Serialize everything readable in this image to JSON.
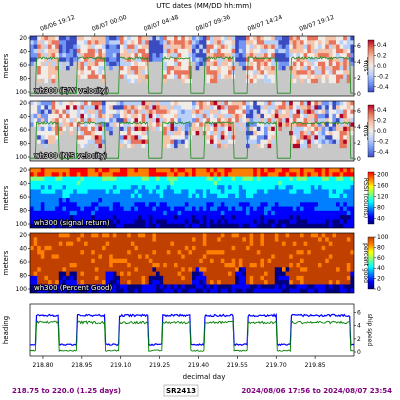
{
  "chart_data": {
    "type": "heatmap",
    "top_axis": {
      "title": "UTC dates (MM/DD hh:mm)",
      "ticks": [
        "08/06 19:12",
        "08/07 00:00",
        "08/07 04:48",
        "08/07 09:36",
        "08/07 14:24",
        "08/07 19:12"
      ],
      "tick_days": [
        218.8,
        219.0,
        219.2,
        219.4,
        219.6,
        219.8
      ]
    },
    "x": {
      "label": "decimal day",
      "range": [
        218.75,
        220.0
      ],
      "ticks": [
        "218.80",
        "218.95",
        "219.10",
        "219.25",
        "219.40",
        "219.55",
        "219.70",
        "219.85"
      ],
      "tick_values": [
        218.8,
        218.95,
        219.1,
        219.25,
        219.4,
        219.55,
        219.7,
        219.85
      ]
    },
    "depth_axis": {
      "label": "meters",
      "range": [
        20,
        100
      ],
      "ticks": [
        "20",
        "40",
        "60",
        "80",
        "100"
      ],
      "tick_values": [
        20,
        40,
        60,
        80,
        100
      ]
    },
    "panels": [
      {
        "id": "ew",
        "label": "wh300 (E/W velocity)",
        "colorbar_label": "m/s",
        "colorbar_ticks": [
          "0.4",
          "0.2",
          "0.0",
          "-0.2",
          "-0.4"
        ],
        "colorbar_values": [
          0.4,
          0.2,
          0.0,
          -0.2,
          -0.4
        ],
        "right_axis_label": "speed",
        "right_axis_ticks": [
          "6",
          "4",
          "2",
          "0"
        ],
        "colors": [
          "#3b4cc0",
          "#7396f5",
          "#b9d0f9",
          "#f1ece8",
          "#f4c3a9",
          "#e7745b",
          "#b40426"
        ]
      },
      {
        "id": "ns",
        "label": "wh300 (N/S velocity)",
        "colorbar_label": "m/s",
        "colorbar_ticks": [
          "0.4",
          "0.2",
          "0.0",
          "-0.2",
          "-0.4"
        ],
        "colorbar_values": [
          0.4,
          0.2,
          0.0,
          -0.2,
          -0.4
        ],
        "right_axis_label": "speed",
        "right_axis_ticks": [
          "6",
          "4",
          "2",
          "0"
        ],
        "colors": [
          "#3b4cc0",
          "#7396f5",
          "#b9d0f9",
          "#f1ece8",
          "#f4c3a9",
          "#e7745b",
          "#b40426"
        ]
      },
      {
        "id": "amp",
        "label": "wh300 (signal return)",
        "colorbar_label": "RSSI (counts)",
        "colorbar_ticks": [
          "200",
          "160",
          "120",
          "80",
          "40"
        ],
        "colorbar_values": [
          200,
          160,
          120,
          80,
          40
        ],
        "colors": [
          "#00007f",
          "#0000ff",
          "#007fff",
          "#00ffff",
          "#7fff7f",
          "#ffff00",
          "#ff7f00",
          "#ff0000"
        ]
      },
      {
        "id": "pg",
        "label": "wh300 (Percent Good)",
        "colorbar_label": "percent good",
        "colorbar_ticks": [
          "100",
          "80",
          "60",
          "40",
          "20",
          "0"
        ],
        "colorbar_values": [
          100,
          80,
          60,
          40,
          20,
          0
        ],
        "colors": [
          "#00007f",
          "#0000ff",
          "#007fff",
          "#00ffff",
          "#7fff7f",
          "#ffff00",
          "#ff7f00",
          "#c04000"
        ]
      }
    ],
    "heading_panel": {
      "left_label": "heading",
      "right_label": "ship speed",
      "right_ticks": [
        "6",
        "4",
        "2",
        "0"
      ],
      "series": [
        {
          "name": "heading",
          "color": "#0000ff"
        },
        {
          "name": "ship speed",
          "color": "#008000"
        }
      ]
    },
    "speed_segments": [
      {
        "start": 218.775,
        "end": 218.86,
        "value": 4.5
      },
      {
        "start": 218.93,
        "end": 219.04,
        "value": 4.5
      },
      {
        "start": 219.095,
        "end": 219.205,
        "value": 4.5
      },
      {
        "start": 219.26,
        "end": 219.37,
        "value": 4.5
      },
      {
        "start": 219.425,
        "end": 219.535,
        "value": 4.5
      },
      {
        "start": 219.59,
        "end": 219.7,
        "value": 4.5
      },
      {
        "start": 219.755,
        "end": 219.985,
        "value": 4.5
      }
    ]
  },
  "footer": {
    "left": "218.75 to 220.0 (1.25 days)",
    "center": "SR2413",
    "right": "2024/08/06 17:56 to 2024/08/07 23:54"
  }
}
